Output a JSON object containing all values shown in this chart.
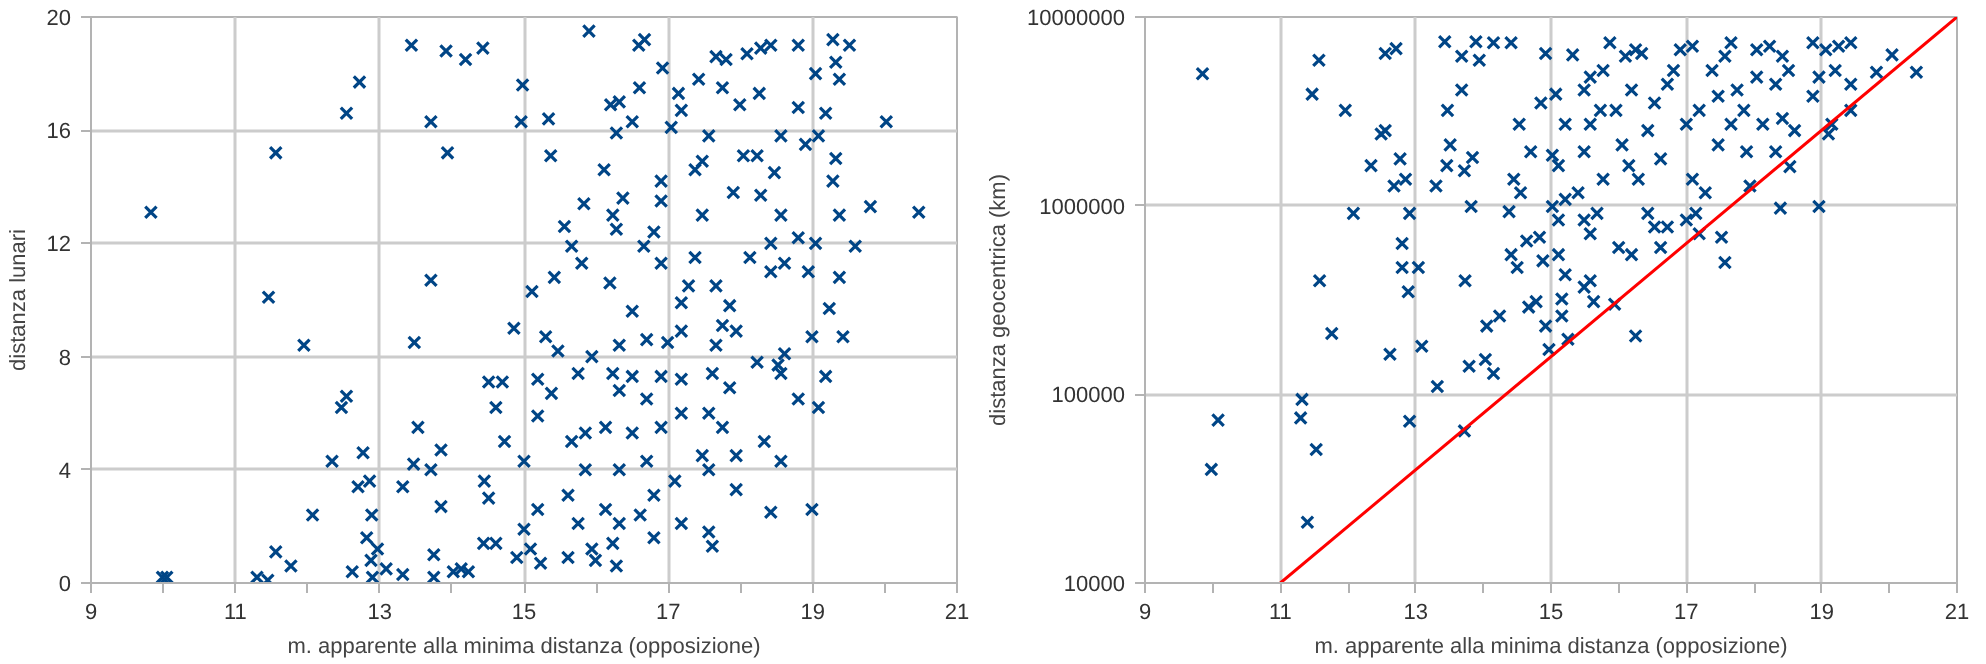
{
  "chart_data": [
    {
      "type": "scatter",
      "xlabel": "m. apparente alla minima distanza (opposizione)",
      "ylabel": "distanza lunari",
      "marker": "cross",
      "grid": true,
      "xlim": [
        9,
        21
      ],
      "ylim": [
        0,
        20
      ],
      "xticks": [
        9,
        {
          "value": 10,
          "label": null
        },
        11,
        {
          "value": 12,
          "label": null
        },
        13,
        {
          "value": 14,
          "label": null
        },
        15,
        {
          "value": 16,
          "label": null
        },
        17,
        {
          "value": 18,
          "label": null
        },
        19,
        {
          "value": 20,
          "label": null
        },
        21
      ],
      "yticks": [
        0,
        4,
        8,
        12,
        16,
        20
      ],
      "series": [
        {
          "color": "#004586",
          "x": [
            9.83,
            9.99,
            10.05,
            11.3,
            11.45,
            11.56,
            11.77,
            11.46,
            11.56,
            11.95,
            12.07,
            12.34,
            12.47,
            12.54,
            12.54,
            12.72,
            12.77,
            12.7,
            12.86,
            12.89,
            12.82,
            12.97,
            12.88,
            12.62,
            12.9,
            13.09,
            13.32,
            13.32,
            13.44,
            13.48,
            13.53,
            13.47,
            13.71,
            13.71,
            13.71,
            13.85,
            13.75,
            13.75,
            14.02,
            14.13,
            14.23,
            13.85,
            13.92,
            14.19,
            14.43,
            13.94,
            14.45,
            14.51,
            14.44,
            14.61,
            14.7,
            14.51,
            14.61,
            14.73,
            14.86,
            14.98,
            14.96,
            15.34,
            15.37,
            15.11,
            15.42,
            15.0,
            15.19,
            15.0,
            14.9,
            15.09,
            15.23,
            15.19,
            15.38,
            15.19,
            15.3,
            15.47,
            15.56,
            15.66,
            15.8,
            15.83,
            15.9,
            15.75,
            15.94,
            15.66,
            15.85,
            15.85,
            15.61,
            15.75,
            15.61,
            15.94,
            15.99,
            16.11,
            16.19,
            16.23,
            16.28,
            16.37,
            16.2,
            16.32,
            16.28,
            16.5,
            16.6,
            16.59,
            16.67,
            16.92,
            17.04,
            16.9,
            16.9,
            17.14,
            17.18,
            16.5,
            16.32,
            16.7,
            16.99,
            17.18,
            16.66,
            16.9,
            16.8,
            16.23,
            16.5,
            16.9,
            17.18,
            16.7,
            16.32,
            16.13,
            16.5,
            16.7,
            16.9,
            17.18,
            16.32,
            16.13,
            16.32,
            16.61,
            16.8,
            16.23,
            16.28,
            16.8,
            17.09,
            17.18,
            17.56,
            17.61,
            17.37,
            17.47,
            17.56,
            17.8,
            17.66,
            17.75,
            17.42,
            17.47,
            17.37,
            17.28,
            17.18,
            17.66,
            17.85,
            17.75,
            17.66,
            17.94,
            17.61,
            17.85,
            17.56,
            17.75,
            17.94,
            17.47,
            17.94,
            17.56,
            17.99,
            18.09,
            18.28,
            18.42,
            18.8,
            17.9,
            18.04,
            18.23,
            18.28,
            18.47,
            18.56,
            18.26,
            18.8,
            18.13,
            18.42,
            18.42,
            18.61,
            18.56,
            18.8,
            19.04,
            18.23,
            18.52,
            18.56,
            18.61,
            18.8,
            18.33,
            18.56,
            18.42,
            18.99,
            19.08,
            19.18,
            18.9,
            19.08,
            19.18,
            19.04,
            19.28,
            19.51,
            19.32,
            19.37,
            18.94,
            19.37,
            19.23,
            19.42,
            18.99,
            19.28,
            19.37,
            19.32,
            19.59,
            19.8,
            20.02,
            20.47
          ],
          "values": [
            13.1,
            0.2,
            0.2,
            0.2,
            0.1,
            1.1,
            0.6,
            10.1,
            15.2,
            8.4,
            2.4,
            4.3,
            6.2,
            6.6,
            16.6,
            17.7,
            4.6,
            3.4,
            3.6,
            2.4,
            1.6,
            1.2,
            0.8,
            0.4,
            0.2,
            0.5,
            0.3,
            3.4,
            19.0,
            8.5,
            5.5,
            4.2,
            4.0,
            10.7,
            16.3,
            2.7,
            1.0,
            0.2,
            0.4,
            0.5,
            0.4,
            4.7,
            18.8,
            18.5,
            18.9,
            15.2,
            3.6,
            3.0,
            1.4,
            1.4,
            7.1,
            7.1,
            6.2,
            5.0,
            9.0,
            17.6,
            16.3,
            16.4,
            15.1,
            10.3,
            10.8,
            4.3,
            2.6,
            1.9,
            0.9,
            1.2,
            0.7,
            7.2,
            6.7,
            5.9,
            8.7,
            8.2,
            12.6,
            11.9,
            11.3,
            13.4,
            19.5,
            7.4,
            8.0,
            5.0,
            5.3,
            4.0,
            3.1,
            2.1,
            0.9,
            1.2,
            0.8,
            14.6,
            10.6,
            13.0,
            12.5,
            13.6,
            16.9,
            17.0,
            15.9,
            16.3,
            17.5,
            19.0,
            19.2,
            18.2,
            16.1,
            14.2,
            13.5,
            17.3,
            16.7,
            9.6,
            8.4,
            8.6,
            8.5,
            8.9,
            11.9,
            11.3,
            12.4,
            7.4,
            7.3,
            7.3,
            7.2,
            6.5,
            6.8,
            5.5,
            5.3,
            4.3,
            5.5,
            6.0,
            4.0,
            2.6,
            2.1,
            2.4,
            1.6,
            1.4,
            0.6,
            3.1,
            3.6,
            2.1,
            1.8,
            1.3,
            14.6,
            14.9,
            15.8,
            18.5,
            18.6,
            17.5,
            17.8,
            13.0,
            11.5,
            10.5,
            9.9,
            10.5,
            9.8,
            9.1,
            8.4,
            8.9,
            7.4,
            6.9,
            6.0,
            5.5,
            4.5,
            4.5,
            3.3,
            4.0,
            16.9,
            18.7,
            18.9,
            19.0,
            19.0,
            13.8,
            15.1,
            15.1,
            13.7,
            14.5,
            15.8,
            17.3,
            16.8,
            11.5,
            12.0,
            11.0,
            11.3,
            13.0,
            12.2,
            12.0,
            7.8,
            7.7,
            7.4,
            8.1,
            6.5,
            5.0,
            4.3,
            2.5,
            2.6,
            6.2,
            7.3,
            15.5,
            15.8,
            16.6,
            18.0,
            19.2,
            19.0,
            18.4,
            17.8,
            11.0,
            10.8,
            9.7,
            8.7,
            8.7,
            14.2,
            13.0,
            15.0,
            11.9,
            13.3,
            16.3,
            13.1
          ]
        }
      ]
    },
    {
      "type": "scatter",
      "xlabel": "m. apparente alla minima distanza (opposizione)",
      "ylabel": "distanza geocentrica (km)",
      "grid": true,
      "log": "y",
      "xlim": [
        9,
        21
      ],
      "ylim": [
        10000,
        10000000
      ],
      "xticks": [
        9,
        {
          "value": 10,
          "label": null
        },
        11,
        {
          "value": 12,
          "label": null
        },
        13,
        {
          "value": 14,
          "label": null
        },
        15,
        {
          "value": 16,
          "label": null
        },
        17,
        {
          "value": 18,
          "label": null
        },
        19,
        {
          "value": 20,
          "label": null
        },
        21
      ],
      "yticks": [
        10000,
        100000,
        1000000,
        10000000
      ],
      "series": [
        {
          "color": "#004586",
          "marker": "cross",
          "x": [
            9.85,
            10.08,
            9.98,
            11.32,
            11.3,
            11.53,
            11.4,
            11.57,
            11.47,
            11.58,
            11.76,
            11.96,
            12.08,
            12.34,
            12.49,
            12.55,
            12.68,
            12.77,
            12.85,
            12.55,
            12.71,
            12.62,
            12.8,
            12.8,
            12.89,
            12.91,
            13.04,
            12.91,
            13.09,
            13.32,
            13.3,
            13.47,
            13.68,
            13.51,
            13.46,
            13.72,
            13.84,
            13.43,
            13.68,
            13.89,
            13.94,
            14.15,
            14.41,
            13.73,
            13.82,
            13.72,
            13.79,
            14.03,
            14.15,
            14.05,
            14.24,
            14.38,
            14.45,
            14.53,
            14.55,
            14.41,
            14.5,
            14.64,
            14.7,
            14.67,
            14.78,
            14.92,
            15.16,
            14.97,
            15.25,
            15.16,
            14.83,
            14.88,
            15.11,
            15.21,
            15.11,
            15.02,
            15.21,
            14.92,
            14.85,
            15.07,
            15.32,
            15.21,
            15.11,
            15.02,
            15.49,
            15.58,
            15.63,
            15.94,
            15.49,
            15.58,
            15.4,
            15.68,
            15.77,
            15.49,
            15.58,
            15.73,
            15.49,
            15.58,
            15.87,
            15.77,
            16.1,
            16.25,
            16.34,
            16.0,
            16.19,
            16.15,
            16.29,
            16.05,
            15.96,
            16.19,
            16.25,
            16.43,
            16.53,
            16.43,
            16.62,
            16.53,
            16.72,
            16.81,
            16.62,
            16.72,
            16.91,
            17.09,
            17.0,
            17.19,
            17.09,
            17.28,
            17.0,
            17.19,
            17.14,
            17.57,
            17.52,
            17.94,
            17.89,
            17.38,
            17.57,
            17.66,
            17.47,
            17.75,
            17.66,
            17.47,
            17.85,
            18.04,
            18.23,
            18.42,
            18.04,
            18.32,
            18.51,
            18.13,
            18.42,
            18.6,
            18.32,
            18.53,
            18.39,
            18.96,
            18.87,
            19.06,
            19.25,
            19.43,
            18.96,
            19.2,
            19.43,
            18.87,
            19.15,
            19.1,
            19.43,
            19.81,
            20.04,
            20.4
          ],
          "values": [
            5000000,
            73000,
            40000,
            94000,
            75000,
            51000,
            21000,
            5900000,
            3900000,
            400000,
            210000,
            3200000,
            910000,
            1630000,
            2400000,
            2500000,
            1270000,
            1770000,
            1380000,
            6400000,
            6800000,
            163000,
            630000,
            470000,
            350000,
            910000,
            470000,
            72000,
            180000,
            110000,
            1270000,
            3200000,
            4100000,
            2100000,
            1630000,
            1530000,
            1800000,
            7400000,
            6200000,
            7400000,
            5900000,
            7300000,
            7300000,
            400000,
            990000,
            64000,
            141000,
            153000,
            129000,
            230000,
            260000,
            930000,
            1380000,
            2700000,
            1170000,
            550000,
            470000,
            650000,
            1930000,
            290000,
            310000,
            230000,
            260000,
            173000,
            196000,
            320000,
            680000,
            510000,
            550000,
            430000,
            840000,
            990000,
            1080000,
            6400000,
            3500000,
            3900000,
            6300000,
            2700000,
            1630000,
            1850000,
            370000,
            400000,
            310000,
            300000,
            840000,
            710000,
            1170000,
            910000,
            1380000,
            1930000,
            2700000,
            3200000,
            4100000,
            4800000,
            7300000,
            5200000,
            6200000,
            6700000,
            6400000,
            600000,
            550000,
            1630000,
            1380000,
            2100000,
            3200000,
            4100000,
            204000,
            910000,
            770000,
            2500000,
            1770000,
            3500000,
            4400000,
            5200000,
            600000,
            770000,
            6700000,
            7000000,
            2700000,
            3200000,
            1380000,
            1170000,
            840000,
            710000,
            910000,
            500000,
            680000,
            1270000,
            1930000,
            5200000,
            6200000,
            7300000,
            3800000,
            4100000,
            2700000,
            2100000,
            3200000,
            6700000,
            7000000,
            6200000,
            4800000,
            4400000,
            5200000,
            2700000,
            2900000,
            2500000,
            1930000,
            1610000,
            970000,
            990000,
            7300000,
            6700000,
            7000000,
            7300000,
            4800000,
            5200000,
            4400000,
            3800000,
            2700000,
            2400000,
            3200000,
            5100000,
            6300000,
            5100000
          ]
        },
        {
          "type": "line",
          "color": "#ff0000",
          "x": [
            11,
            21
          ],
          "values": [
            10000,
            10000000
          ]
        }
      ]
    }
  ]
}
